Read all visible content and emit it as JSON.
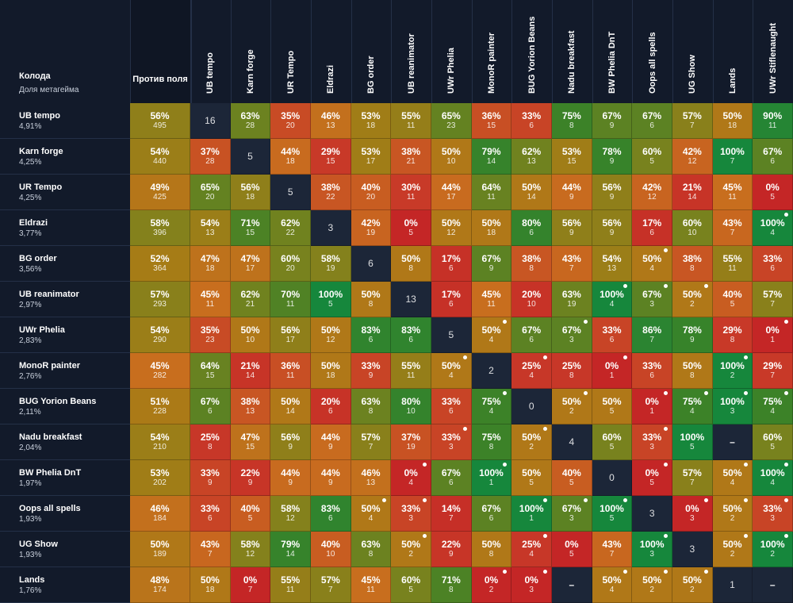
{
  "header": {
    "deck_label": "Колода",
    "share_label": "Доля метагейма",
    "vs_field_label": "Против поля"
  },
  "chart_data": {
    "type": "heatmap",
    "columns": [
      "UB tempo",
      "Karn forge",
      "UR Tempo",
      "Eldrazi",
      "BG order",
      "UB reanimator",
      "UWr Phelia",
      "MonoR painter",
      "BUG Yorion Beans",
      "Nadu breakfast",
      "BW Phelia DnT",
      "Oops all spells",
      "UG Show",
      "Lands",
      "UWr Stiflenaught"
    ],
    "rows": [
      {
        "name": "UB tempo",
        "share": "4,91%",
        "field": {
          "pct": "56%",
          "n": "495"
        },
        "cells": [
          [
            null,
            "16"
          ],
          [
            "63%",
            "28"
          ],
          [
            "35%",
            "20"
          ],
          [
            "46%",
            "13"
          ],
          [
            "53%",
            "18"
          ],
          [
            "55%",
            "11"
          ],
          [
            "65%",
            "23"
          ],
          [
            "36%",
            "15"
          ],
          [
            "33%",
            "6"
          ],
          [
            "75%",
            "8"
          ],
          [
            "67%",
            "9"
          ],
          [
            "67%",
            "6"
          ],
          [
            "57%",
            "7"
          ],
          [
            "50%",
            "18"
          ],
          [
            "90%",
            "11"
          ]
        ]
      },
      {
        "name": "Karn forge",
        "share": "4,25%",
        "field": {
          "pct": "54%",
          "n": "440"
        },
        "cells": [
          [
            "37%",
            "28"
          ],
          [
            null,
            "5"
          ],
          [
            "44%",
            "18"
          ],
          [
            "29%",
            "15"
          ],
          [
            "53%",
            "17"
          ],
          [
            "38%",
            "21"
          ],
          [
            "50%",
            "10"
          ],
          [
            "79%",
            "14"
          ],
          [
            "62%",
            "13"
          ],
          [
            "53%",
            "15"
          ],
          [
            "78%",
            "9"
          ],
          [
            "60%",
            "5"
          ],
          [
            "42%",
            "12"
          ],
          [
            "100%",
            "7"
          ],
          [
            "67%",
            "6"
          ]
        ]
      },
      {
        "name": "UR Tempo",
        "share": "4,25%",
        "field": {
          "pct": "49%",
          "n": "425"
        },
        "cells": [
          [
            "65%",
            "20"
          ],
          [
            "56%",
            "18"
          ],
          [
            null,
            "5"
          ],
          [
            "38%",
            "22"
          ],
          [
            "40%",
            "20"
          ],
          [
            "30%",
            "11"
          ],
          [
            "44%",
            "17"
          ],
          [
            "64%",
            "11"
          ],
          [
            "50%",
            "14"
          ],
          [
            "44%",
            "9"
          ],
          [
            "56%",
            "9"
          ],
          [
            "42%",
            "12"
          ],
          [
            "21%",
            "14"
          ],
          [
            "45%",
            "11"
          ],
          [
            "0%",
            "5"
          ]
        ]
      },
      {
        "name": "Eldrazi",
        "share": "3,77%",
        "field": {
          "pct": "58%",
          "n": "396"
        },
        "cells": [
          [
            "54%",
            "13"
          ],
          [
            "71%",
            "15"
          ],
          [
            "62%",
            "22"
          ],
          [
            null,
            "3"
          ],
          [
            "42%",
            "19"
          ],
          [
            "0%",
            "5"
          ],
          [
            "50%",
            "12"
          ],
          [
            "50%",
            "18"
          ],
          [
            "80%",
            "6"
          ],
          [
            "56%",
            "9"
          ],
          [
            "56%",
            "9"
          ],
          [
            "17%",
            "6"
          ],
          [
            "60%",
            "10"
          ],
          [
            "43%",
            "7"
          ],
          [
            "100%",
            "4",
            1
          ]
        ]
      },
      {
        "name": "BG order",
        "share": "3,56%",
        "field": {
          "pct": "52%",
          "n": "364"
        },
        "cells": [
          [
            "47%",
            "18"
          ],
          [
            "47%",
            "17"
          ],
          [
            "60%",
            "20"
          ],
          [
            "58%",
            "19"
          ],
          [
            null,
            "6"
          ],
          [
            "50%",
            "8"
          ],
          [
            "17%",
            "6"
          ],
          [
            "67%",
            "9"
          ],
          [
            "38%",
            "8"
          ],
          [
            "43%",
            "7"
          ],
          [
            "54%",
            "13"
          ],
          [
            "50%",
            "4",
            1
          ],
          [
            "38%",
            "8"
          ],
          [
            "55%",
            "11"
          ],
          [
            "33%",
            "6"
          ]
        ]
      },
      {
        "name": "UB reanimator",
        "share": "2,97%",
        "field": {
          "pct": "57%",
          "n": "293"
        },
        "cells": [
          [
            "45%",
            "11"
          ],
          [
            "62%",
            "21"
          ],
          [
            "70%",
            "11"
          ],
          [
            "100%",
            "5"
          ],
          [
            "50%",
            "8"
          ],
          [
            null,
            "13"
          ],
          [
            "17%",
            "6"
          ],
          [
            "45%",
            "11"
          ],
          [
            "20%",
            "10"
          ],
          [
            "63%",
            "19"
          ],
          [
            "100%",
            "4",
            1
          ],
          [
            "67%",
            "3",
            1
          ],
          [
            "50%",
            "2",
            1
          ],
          [
            "40%",
            "5"
          ],
          [
            "57%",
            "7"
          ]
        ]
      },
      {
        "name": "UWr Phelia",
        "share": "2,83%",
        "field": {
          "pct": "54%",
          "n": "290"
        },
        "cells": [
          [
            "35%",
            "23"
          ],
          [
            "50%",
            "10"
          ],
          [
            "56%",
            "17"
          ],
          [
            "50%",
            "12"
          ],
          [
            "83%",
            "6"
          ],
          [
            "83%",
            "6"
          ],
          [
            null,
            "5"
          ],
          [
            "50%",
            "4",
            1
          ],
          [
            "67%",
            "6"
          ],
          [
            "67%",
            "3",
            1
          ],
          [
            "33%",
            "6"
          ],
          [
            "86%",
            "7"
          ],
          [
            "78%",
            "9"
          ],
          [
            "29%",
            "8"
          ],
          [
            "0%",
            "1",
            1
          ]
        ]
      },
      {
        "name": "MonoR painter",
        "share": "2,76%",
        "field": {
          "pct": "45%",
          "n": "282"
        },
        "cells": [
          [
            "64%",
            "15"
          ],
          [
            "21%",
            "14"
          ],
          [
            "36%",
            "11"
          ],
          [
            "50%",
            "18"
          ],
          [
            "33%",
            "9"
          ],
          [
            "55%",
            "11"
          ],
          [
            "50%",
            "4",
            1
          ],
          [
            null,
            "2"
          ],
          [
            "25%",
            "4",
            1
          ],
          [
            "25%",
            "8"
          ],
          [
            "0%",
            "1",
            1
          ],
          [
            "33%",
            "6"
          ],
          [
            "50%",
            "8"
          ],
          [
            "100%",
            "2",
            1
          ],
          [
            "29%",
            "7"
          ]
        ]
      },
      {
        "name": "BUG Yorion Beans",
        "share": "2,11%",
        "field": {
          "pct": "51%",
          "n": "228"
        },
        "cells": [
          [
            "67%",
            "6"
          ],
          [
            "38%",
            "13"
          ],
          [
            "50%",
            "14"
          ],
          [
            "20%",
            "6"
          ],
          [
            "63%",
            "8"
          ],
          [
            "80%",
            "10"
          ],
          [
            "33%",
            "6"
          ],
          [
            "75%",
            "4",
            1
          ],
          [
            null,
            "0"
          ],
          [
            "50%",
            "2",
            1
          ],
          [
            "50%",
            "5"
          ],
          [
            "0%",
            "1",
            1
          ],
          [
            "75%",
            "4",
            1
          ],
          [
            "100%",
            "3",
            1
          ],
          [
            "75%",
            "4",
            1
          ]
        ]
      },
      {
        "name": "Nadu breakfast",
        "share": "2,04%",
        "field": {
          "pct": "54%",
          "n": "210"
        },
        "cells": [
          [
            "25%",
            "8"
          ],
          [
            "47%",
            "15"
          ],
          [
            "56%",
            "9"
          ],
          [
            "44%",
            "9"
          ],
          [
            "57%",
            "7"
          ],
          [
            "37%",
            "19"
          ],
          [
            "33%",
            "3",
            1
          ],
          [
            "75%",
            "8"
          ],
          [
            "50%",
            "2",
            1
          ],
          [
            null,
            "4"
          ],
          [
            "60%",
            "5"
          ],
          [
            "33%",
            "3",
            1
          ],
          [
            "100%",
            "5"
          ],
          [
            "–",
            ""
          ],
          [
            "60%",
            "5"
          ]
        ]
      },
      {
        "name": "BW Phelia DnT",
        "share": "1,97%",
        "field": {
          "pct": "53%",
          "n": "202"
        },
        "cells": [
          [
            "33%",
            "9"
          ],
          [
            "22%",
            "9"
          ],
          [
            "44%",
            "9"
          ],
          [
            "44%",
            "9"
          ],
          [
            "46%",
            "13"
          ],
          [
            "0%",
            "4",
            1
          ],
          [
            "67%",
            "6"
          ],
          [
            "100%",
            "1",
            1
          ],
          [
            "50%",
            "5"
          ],
          [
            "40%",
            "5"
          ],
          [
            null,
            "0"
          ],
          [
            "0%",
            "5",
            1
          ],
          [
            "57%",
            "7"
          ],
          [
            "50%",
            "4",
            1
          ],
          [
            "100%",
            "4",
            1
          ]
        ]
      },
      {
        "name": "Oops all spells",
        "share": "1,93%",
        "field": {
          "pct": "46%",
          "n": "184"
        },
        "cells": [
          [
            "33%",
            "6"
          ],
          [
            "40%",
            "5"
          ],
          [
            "58%",
            "12"
          ],
          [
            "83%",
            "6"
          ],
          [
            "50%",
            "4",
            1
          ],
          [
            "33%",
            "3",
            1
          ],
          [
            "14%",
            "7"
          ],
          [
            "67%",
            "6"
          ],
          [
            "100%",
            "1",
            1
          ],
          [
            "67%",
            "3",
            1
          ],
          [
            "100%",
            "5",
            1
          ],
          [
            null,
            "3"
          ],
          [
            "0%",
            "3",
            1
          ],
          [
            "50%",
            "2",
            1
          ],
          [
            "33%",
            "3",
            1
          ]
        ]
      },
      {
        "name": "UG Show",
        "share": "1,93%",
        "field": {
          "pct": "50%",
          "n": "189"
        },
        "cells": [
          [
            "43%",
            "7"
          ],
          [
            "58%",
            "12"
          ],
          [
            "79%",
            "14"
          ],
          [
            "40%",
            "10"
          ],
          [
            "63%",
            "8"
          ],
          [
            "50%",
            "2",
            1
          ],
          [
            "22%",
            "9"
          ],
          [
            "50%",
            "8"
          ],
          [
            "25%",
            "4",
            1
          ],
          [
            "0%",
            "5"
          ],
          [
            "43%",
            "7"
          ],
          [
            "100%",
            "3",
            1
          ],
          [
            null,
            "3"
          ],
          [
            "50%",
            "2",
            1
          ],
          [
            "100%",
            "2",
            1
          ]
        ]
      },
      {
        "name": "Lands",
        "share": "1,76%",
        "field": {
          "pct": "48%",
          "n": "174"
        },
        "cells": [
          [
            "50%",
            "18"
          ],
          [
            "0%",
            "7"
          ],
          [
            "55%",
            "11"
          ],
          [
            "57%",
            "7"
          ],
          [
            "45%",
            "11"
          ],
          [
            "60%",
            "5"
          ],
          [
            "71%",
            "8"
          ],
          [
            "0%",
            "2",
            1
          ],
          [
            "0%",
            "3",
            1
          ],
          [
            "–",
            ""
          ],
          [
            "50%",
            "4",
            1
          ],
          [
            "50%",
            "2",
            1
          ],
          [
            "50%",
            "2",
            1
          ],
          [
            null,
            "1"
          ],
          [
            "–",
            ""
          ]
        ]
      }
    ]
  }
}
